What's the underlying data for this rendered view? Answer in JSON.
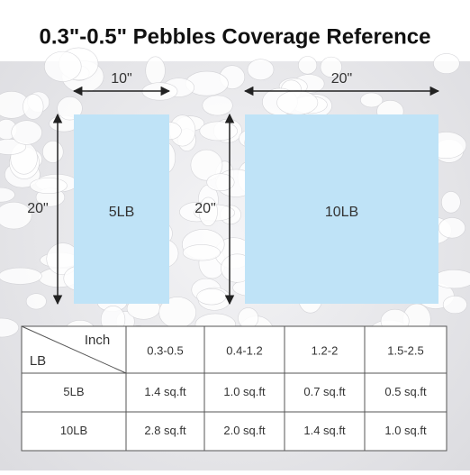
{
  "title": "0.3\"-0.5\" Pebbles Coverage Reference",
  "panels": [
    {
      "width_label": "10\"",
      "height_label": "20\"",
      "label": "5LB"
    },
    {
      "width_label": "20\"",
      "height_label": "20\"",
      "label": "10LB"
    }
  ],
  "table": {
    "corner_top": "Inch",
    "corner_bottom": "LB",
    "columns": [
      "0.3-0.5",
      "0.4-1.2",
      "1.2-2",
      "1.5-2.5"
    ],
    "rows": [
      [
        "5LB",
        "1.4 sq.ft",
        "1.0 sq.ft",
        "0.7 sq.ft",
        "0.5 sq.ft"
      ],
      [
        "10LB",
        "2.8 sq.ft",
        "2.0 sq.ft",
        "1.4 sq.ft",
        "1.0 sq.ft"
      ]
    ]
  }
}
